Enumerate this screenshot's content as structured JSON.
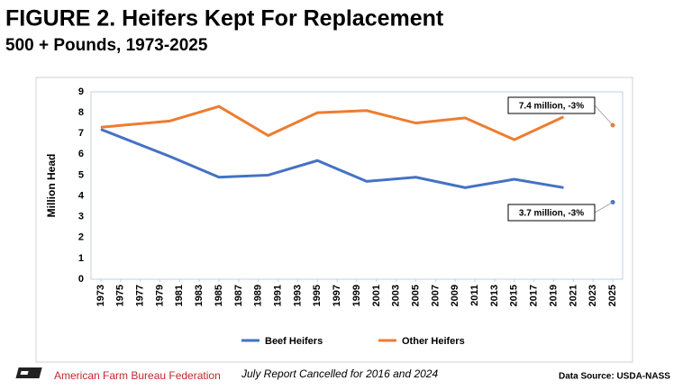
{
  "chart_data": {
    "type": "line",
    "title": "FIGURE 2. Heifers Kept For Replacement",
    "subtitle": "500 + Pounds, 1973-2025",
    "y_label": "Million Head",
    "x": [
      1973,
      1980,
      1985,
      1990,
      1995,
      2000,
      2005,
      2010,
      2015,
      2020,
      2023,
      2025
    ],
    "series": [
      {
        "name": "Beef Heifers",
        "color": "#4472c4",
        "values": [
          7.2,
          5.9,
          4.9,
          5.0,
          5.7,
          4.7,
          4.9,
          4.4,
          4.8,
          4.4,
          null,
          3.7
        ]
      },
      {
        "name": "Other Heifers",
        "color": "#ed7d31",
        "values": [
          7.3,
          7.6,
          8.3,
          6.9,
          8.0,
          8.1,
          7.5,
          7.75,
          6.7,
          7.8,
          null,
          7.4
        ]
      }
    ],
    "xlim": [
      1972,
      2026
    ],
    "xticks": [
      1973,
      1975,
      1977,
      1979,
      1981,
      1983,
      1985,
      1987,
      1989,
      1991,
      1993,
      1995,
      1997,
      1999,
      2001,
      2003,
      2005,
      2007,
      2009,
      2011,
      2013,
      2015,
      2017,
      2019,
      2021,
      2023,
      2025
    ],
    "ylim": [
      0,
      9
    ],
    "yticks": [
      0,
      1,
      2,
      3,
      4,
      5,
      6,
      7,
      8,
      9
    ],
    "grid": false,
    "annotations": [
      "7.4 million, -3%",
      "3.7 million, -3%"
    ],
    "footer": {
      "organization": "American Farm Bureau Federation",
      "note": "July Report Cancelled for 2016 and 2024",
      "source": "Data Source:  USDA-NASS"
    }
  }
}
